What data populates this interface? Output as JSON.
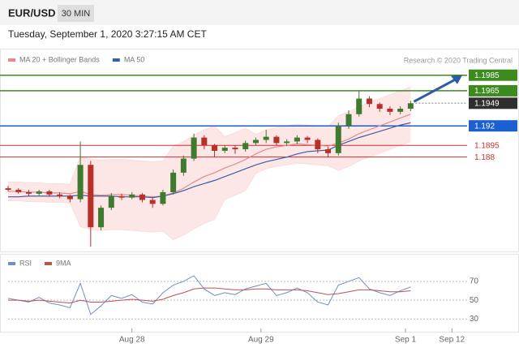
{
  "header": {
    "symbol": "EUR/USD",
    "timeframe": "30 MIN",
    "timestamp": "Tuesday, September 1, 2020 3:27:15 AM CET"
  },
  "chart_data": [
    {
      "type": "candlestick",
      "source": "Research © 2020 Trading Central",
      "up_color": "#3f7a2e",
      "down_color": "#b8302a",
      "ylim": [
        1.1759,
        1.1993
      ],
      "open": [
        1.184,
        1.1838,
        1.1835,
        1.1833,
        1.1836,
        1.1832,
        1.183,
        1.1826,
        1.187,
        1.179,
        1.1815,
        1.183,
        1.1828,
        1.1832,
        1.1825,
        1.182,
        1.1835,
        1.186,
        1.1878,
        1.1905,
        1.1895,
        1.1888,
        1.1892,
        1.189,
        1.1898,
        1.1902,
        1.1906,
        1.1898,
        1.19,
        1.1905,
        1.1902,
        1.189,
        1.1885,
        1.192,
        1.1935,
        1.1955,
        1.1948,
        1.1942,
        1.1938,
        1.1942
      ],
      "high": [
        1.1843,
        1.184,
        1.1838,
        1.1838,
        1.1838,
        1.1835,
        1.1832,
        1.19,
        1.1875,
        1.1818,
        1.1834,
        1.1833,
        1.1835,
        1.1834,
        1.1828,
        1.1838,
        1.1864,
        1.1882,
        1.191,
        1.1908,
        1.1897,
        1.1895,
        1.1895,
        1.1901,
        1.1905,
        1.1915,
        1.1908,
        1.1903,
        1.1908,
        1.1907,
        1.1904,
        1.1893,
        1.1924,
        1.194,
        1.1965,
        1.1958,
        1.195,
        1.1945,
        1.1945,
        1.1952
      ],
      "low": [
        1.1836,
        1.1833,
        1.183,
        1.1831,
        1.1829,
        1.1827,
        1.1822,
        1.1822,
        1.1765,
        1.1786,
        1.1812,
        1.1825,
        1.1826,
        1.1822,
        1.1815,
        1.1818,
        1.1832,
        1.1856,
        1.1875,
        1.189,
        1.188,
        1.1885,
        1.1884,
        1.1887,
        1.1895,
        1.1898,
        1.1895,
        1.1894,
        1.1897,
        1.1898,
        1.1885,
        1.188,
        1.1882,
        1.1916,
        1.1932,
        1.1944,
        1.1938,
        1.1934,
        1.1935,
        1.1939
      ],
      "close": [
        1.1838,
        1.1835,
        1.1833,
        1.1836,
        1.1832,
        1.183,
        1.1826,
        1.187,
        1.179,
        1.1815,
        1.183,
        1.1828,
        1.1832,
        1.1825,
        1.182,
        1.1835,
        1.186,
        1.1878,
        1.1905,
        1.1895,
        1.1888,
        1.1892,
        1.189,
        1.1898,
        1.1902,
        1.1906,
        1.1898,
        1.19,
        1.1905,
        1.1902,
        1.189,
        1.1885,
        1.192,
        1.1935,
        1.1955,
        1.1948,
        1.1942,
        1.1938,
        1.1942,
        1.1949
      ],
      "series": [
        {
          "name": "MA 20 + Bollinger Bands",
          "color": "#e88a8a",
          "band_color": "#fbdcdc",
          "values": [
            1.1836,
            1.1836,
            1.1835,
            1.1835,
            1.1834,
            1.1834,
            1.1833,
            1.1836,
            1.1832,
            1.1831,
            1.1832,
            1.1832,
            1.1831,
            1.183,
            1.1829,
            1.183,
            1.1834,
            1.184,
            1.1848,
            1.1855,
            1.186,
            1.1866,
            1.1871,
            1.1877,
            1.1884,
            1.189,
            1.1893,
            1.1895,
            1.1897,
            1.1896,
            1.1895,
            1.1894,
            1.1898,
            1.1903,
            1.191,
            1.1915,
            1.192,
            1.1925,
            1.193,
            1.1935
          ],
          "upper": [
            1.1848,
            1.1848,
            1.1847,
            1.1847,
            1.1846,
            1.1846,
            1.1845,
            1.1881,
            1.1877,
            1.1876,
            1.1877,
            1.1877,
            1.1876,
            1.1875,
            1.1874,
            1.1875,
            1.1894,
            1.19,
            1.1908,
            1.1915,
            1.192,
            1.1906,
            1.1911,
            1.1917,
            1.1909,
            1.1915,
            1.1918,
            1.192,
            1.1922,
            1.1921,
            1.192,
            1.1919,
            1.1933,
            1.1938,
            1.1945,
            1.195,
            1.1955,
            1.196,
            1.1965,
            1.197
          ],
          "lower": [
            1.1824,
            1.1824,
            1.1823,
            1.1823,
            1.1822,
            1.1822,
            1.1821,
            1.1791,
            1.1787,
            1.1786,
            1.1787,
            1.1787,
            1.1786,
            1.1785,
            1.1784,
            1.1785,
            1.1774,
            1.178,
            1.1788,
            1.1795,
            1.18,
            1.1826,
            1.1831,
            1.1837,
            1.1859,
            1.1865,
            1.1868,
            1.187,
            1.1872,
            1.1871,
            1.187,
            1.1869,
            1.1863,
            1.1868,
            1.1875,
            1.188,
            1.1885,
            1.189,
            1.1895,
            1.19
          ]
        },
        {
          "name": "MA 50",
          "color": "#3a5fa8",
          "values": [
            1.1829,
            1.1829,
            1.183,
            1.183,
            1.183,
            1.183,
            1.183,
            1.1831,
            1.183,
            1.183,
            1.183,
            1.1829,
            1.1829,
            1.1829,
            1.1828,
            1.183,
            1.1833,
            1.1837,
            1.1842,
            1.1846,
            1.185,
            1.1855,
            1.186,
            1.1865,
            1.187,
            1.1874,
            1.1877,
            1.188,
            1.1884,
            1.1887,
            1.1888,
            1.1889,
            1.1895,
            1.19,
            1.1905,
            1.1909,
            1.1913,
            1.1917,
            1.1921,
            1.1924
          ]
        }
      ],
      "levels": [
        {
          "value": 1.1985,
          "color": "#3d8b1f",
          "boxed": true,
          "style": "solid"
        },
        {
          "value": 1.1965,
          "color": "#3d8b1f",
          "boxed": true,
          "style": "solid"
        },
        {
          "value": 1.1949,
          "color": "#2e2e2e",
          "boxed": true,
          "style": "dotted"
        },
        {
          "value": 1.192,
          "color": "#1c5fd1",
          "boxed": true,
          "style": "solid"
        },
        {
          "value": 1.1895,
          "color": "#c9302c",
          "boxed": false,
          "style": "solid"
        },
        {
          "value": 1.188,
          "color": "#c9302c",
          "boxed": false,
          "style": "solid"
        }
      ],
      "arrow_color": "#2b5ca8"
    },
    {
      "type": "line",
      "ylim": [
        20,
        82
      ],
      "yticks": [
        30,
        50,
        70
      ],
      "xlim": [
        0,
        44
      ],
      "xticks": [
        {
          "value": 12,
          "label": "Aug 28"
        },
        {
          "value": 24.5,
          "label": "Aug 29"
        },
        {
          "value": 38.5,
          "label": "Sep 1"
        },
        {
          "value": 43,
          "label": "Sep 12"
        }
      ],
      "series": [
        {
          "name": "RSI",
          "color": "#6f8dc9",
          "values": [
            52,
            50,
            48,
            53,
            47,
            45,
            42,
            68,
            35,
            44,
            55,
            52,
            56,
            48,
            46,
            58,
            66,
            70,
            76,
            62,
            55,
            58,
            56,
            62,
            65,
            68,
            55,
            58,
            63,
            58,
            48,
            45,
            66,
            70,
            74,
            62,
            58,
            55,
            60,
            64
          ]
        },
        {
          "name": "9MA",
          "color": "#c0504d",
          "values": [
            50,
            50,
            49,
            50,
            49,
            48,
            47,
            50,
            48,
            48,
            49,
            50,
            51,
            50,
            49,
            51,
            55,
            58,
            62,
            63,
            63,
            62,
            61,
            61,
            62,
            62,
            61,
            61,
            61,
            60,
            58,
            56,
            57,
            59,
            61,
            61,
            60,
            59,
            59,
            60
          ]
        }
      ]
    }
  ]
}
